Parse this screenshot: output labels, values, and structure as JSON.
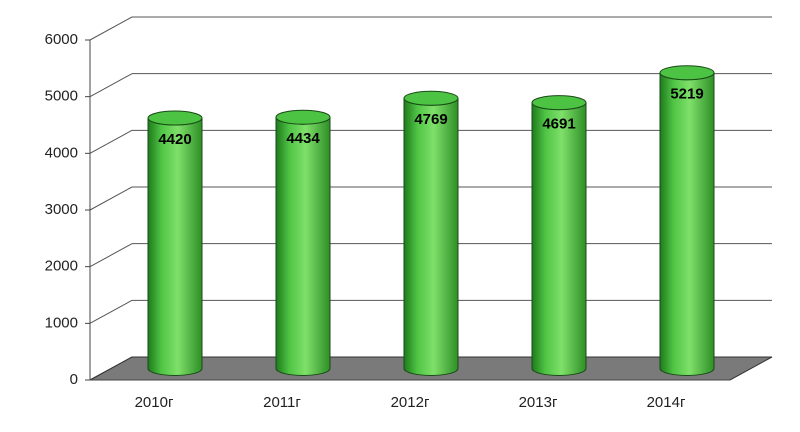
{
  "chart_data": {
    "type": "bar",
    "categories": [
      "2010г",
      "2011г",
      "2012г",
      "2013г",
      "2014г"
    ],
    "values": [
      4420,
      4434,
      4769,
      4691,
      5219
    ],
    "color": "#3fb83a",
    "ylim": [
      0,
      6000
    ],
    "yticks": [
      0,
      1000,
      2000,
      3000,
      4000,
      5000,
      6000
    ],
    "grid": true
  }
}
